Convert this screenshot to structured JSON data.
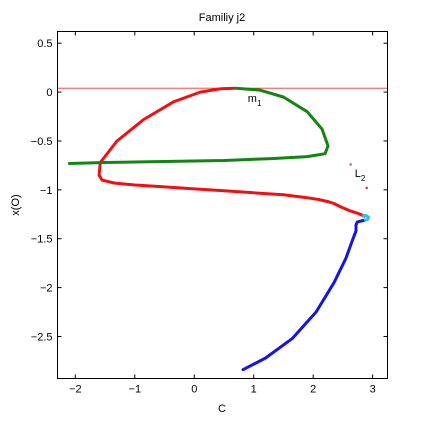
{
  "chart_data": {
    "type": "line",
    "title": "Familiy j2",
    "xlabel": "C",
    "ylabel": "x(O)",
    "xlim": [
      -2.3,
      3.25
    ],
    "ylim": [
      -2.93,
      0.62
    ],
    "xticks": [
      -2,
      -1,
      0,
      1,
      2,
      3
    ],
    "xtick_labels": [
      "−2",
      "−1",
      "0",
      "1",
      "2",
      "3"
    ],
    "yticks": [
      0.5,
      0,
      -0.5,
      -1,
      -1.5,
      -2,
      -2.5
    ],
    "ytick_labels": [
      "0.5",
      "0",
      "−0.5",
      "−1",
      "−1.5",
      "−2",
      "−2.5"
    ],
    "grid": false,
    "reference_line": {
      "y": 0.04,
      "color": "#e83030"
    },
    "series": [
      {
        "color": "#ee1111",
        "x": [
          0.68,
          0.45,
          0.1,
          -0.35,
          -0.85,
          -1.3,
          -1.58,
          -1.6,
          -1.55,
          -1.35,
          -1.0,
          -0.5,
          0.0,
          0.5,
          1.0,
          1.5,
          1.9,
          2.1,
          2.25,
          2.35,
          2.45,
          2.6,
          2.75,
          2.86
        ],
        "y": [
          0.04,
          0.035,
          0.0,
          -0.1,
          -0.28,
          -0.5,
          -0.72,
          -0.85,
          -0.9,
          -0.93,
          -0.95,
          -0.97,
          -0.99,
          -1.01,
          -1.03,
          -1.05,
          -1.08,
          -1.1,
          -1.12,
          -1.14,
          -1.17,
          -1.21,
          -1.24,
          -1.27
        ]
      },
      {
        "color": "#148414",
        "x": [
          0.7,
          1.1,
          1.5,
          1.9,
          2.15,
          2.25,
          2.2,
          1.9,
          1.3,
          0.5,
          -0.5,
          -1.5,
          -2.1
        ],
        "y": [
          0.04,
          0.02,
          -0.05,
          -0.2,
          -0.38,
          -0.55,
          -0.63,
          -0.66,
          -0.68,
          -0.7,
          -0.71,
          -0.72,
          -0.73
        ]
      },
      {
        "color": "#1515dd",
        "x": [
          0.82,
          1.2,
          1.65,
          2.05,
          2.35,
          2.55,
          2.67,
          2.72,
          2.72,
          2.74,
          2.8,
          2.87
        ],
        "y": [
          -2.84,
          -2.72,
          -2.52,
          -2.25,
          -1.95,
          -1.7,
          -1.5,
          -1.42,
          -1.36,
          -1.33,
          -1.32,
          -1.31
        ]
      },
      {
        "color": "#30c0e0",
        "x": [
          2.84,
          2.88,
          2.93,
          2.92,
          2.88
        ],
        "y": [
          -1.27,
          -1.26,
          -1.28,
          -1.3,
          -1.31
        ]
      }
    ],
    "markers": [
      {
        "x": 2.9,
        "y": -0.98,
        "color": "#e03080"
      },
      {
        "x": 2.63,
        "y": -0.74,
        "color": "#c07070"
      }
    ],
    "annotations": [
      {
        "text": "m",
        "sub": "1",
        "x": 0.9,
        "y": -0.1
      },
      {
        "text": "L",
        "sub": "2",
        "x": 2.7,
        "y": -0.87
      }
    ]
  }
}
